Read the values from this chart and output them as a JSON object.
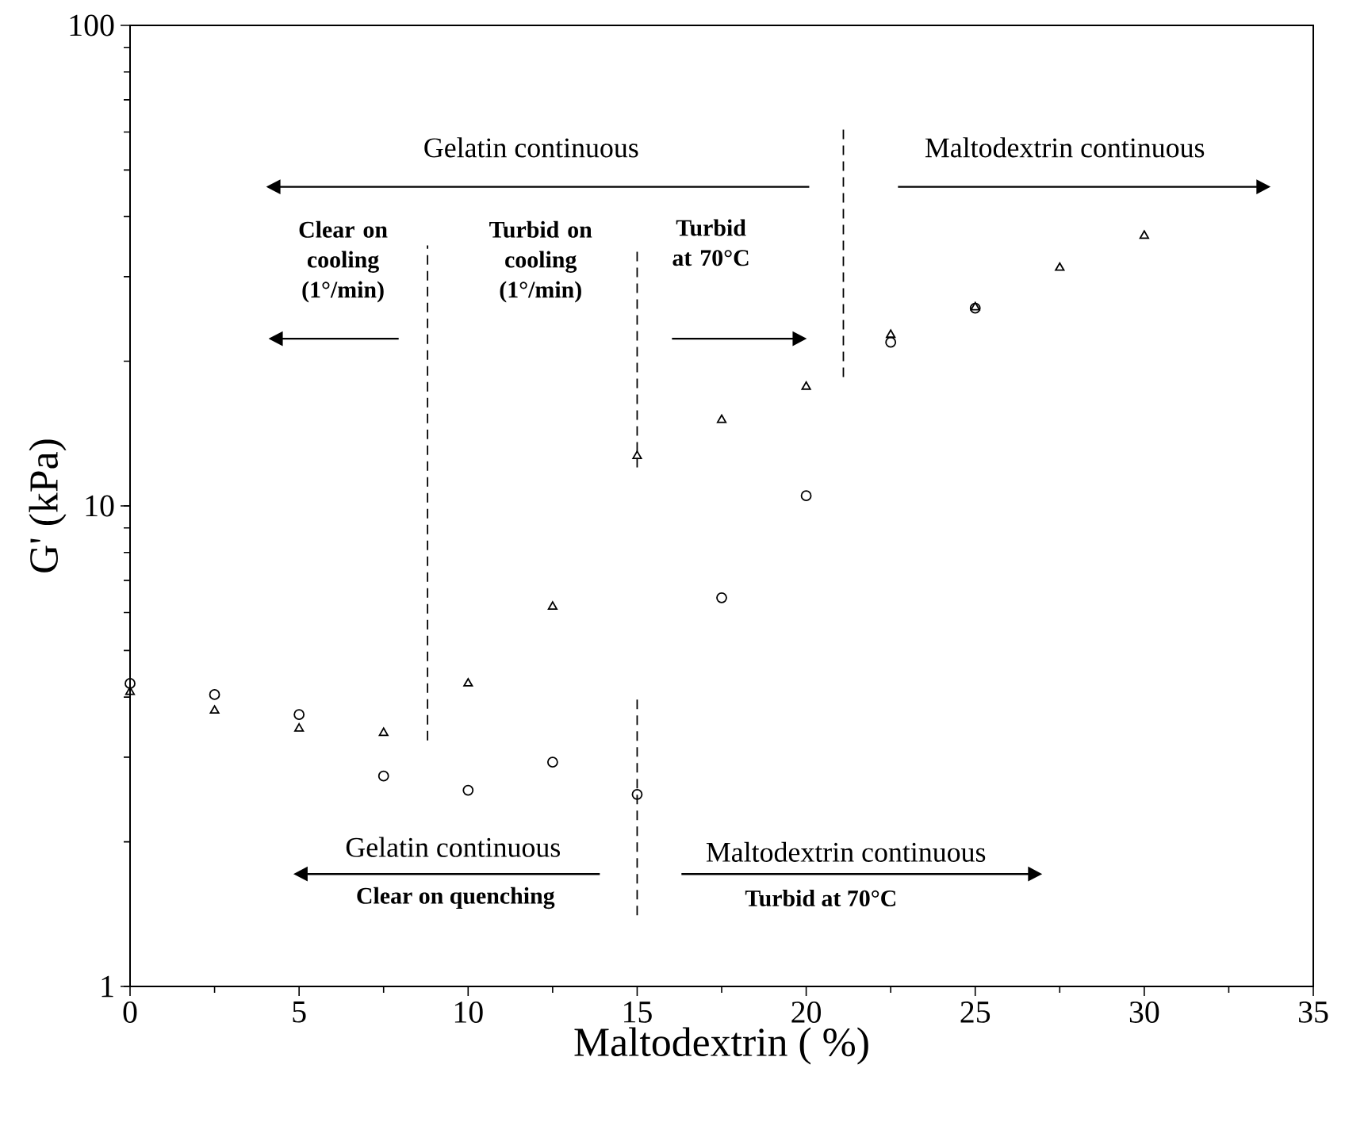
{
  "chart_data": {
    "type": "scatter",
    "xlabel": "Maltodextrin ( %)",
    "ylabel": "G' (kPa)",
    "series": [
      {
        "color": "#000000",
        "marker": "circle",
        "x": [
          0,
          2.5,
          5,
          7.5,
          10,
          12.5,
          15,
          17.5,
          20,
          22.5,
          25
        ],
        "values": [
          4.27,
          4.05,
          3.68,
          2.74,
          2.56,
          2.93,
          2.51,
          6.44,
          10.5,
          21.9,
          25.8
        ]
      },
      {
        "color": "#000000",
        "marker": "triangle",
        "x": [
          0,
          2.5,
          5,
          7.5,
          10,
          12.5,
          15,
          17.5,
          20,
          22.5,
          25,
          27.5,
          30
        ],
        "values": [
          4.1,
          3.75,
          3.44,
          3.37,
          4.27,
          6.17,
          12.7,
          15.1,
          17.7,
          22.7,
          25.9,
          31.3,
          36.5
        ]
      }
    ],
    "xlim": [
      0,
      35
    ],
    "xticks": [
      0,
      5,
      10,
      15,
      20,
      25,
      30,
      35
    ],
    "ylim": [
      1,
      100
    ],
    "yticks": [
      1,
      10,
      100
    ],
    "log": "y",
    "grid": false,
    "ref_lines": [
      {
        "axis": "x",
        "value": 8.8,
        "color": "#000000",
        "line_style": "dashed"
      },
      {
        "axis": "x",
        "value": 15,
        "color": "#000000",
        "line_style": "dashed"
      },
      {
        "axis": "x",
        "value": 21.1,
        "color": "#000000",
        "line_style": "dashed"
      }
    ],
    "annotations": [
      "Gelatin continuous",
      "Maltodextrin continuous",
      "Clear on cooling (1°/min)",
      "Turbid on cooling (1°/min)",
      "Turbid at 70°C",
      "Gelatin continuous",
      "Clear on quenching",
      "Maltodextrin continuous",
      "Turbid at 70°C"
    ]
  }
}
